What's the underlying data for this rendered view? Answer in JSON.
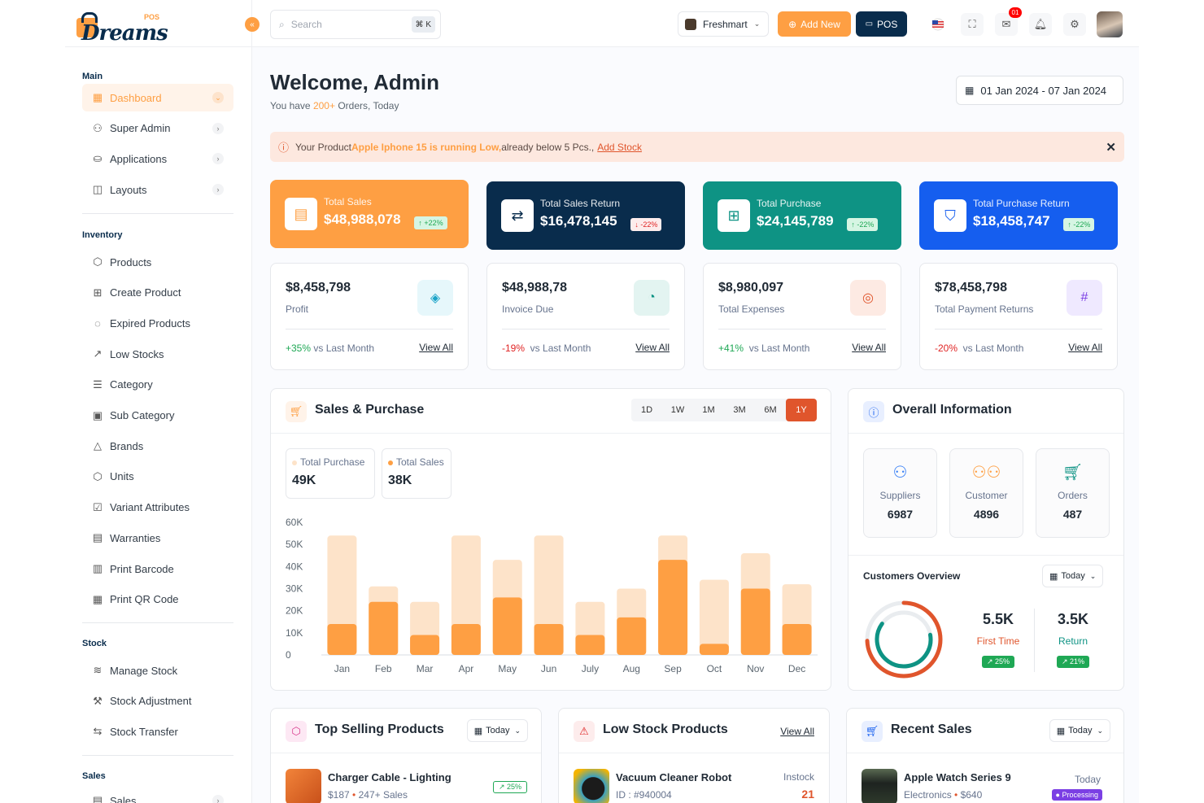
{
  "brand": {
    "name": "Dreams",
    "suffix": "POS"
  },
  "search": {
    "placeholder": "Search",
    "shortcut": "⌘ K"
  },
  "header": {
    "store": "Freshmart",
    "add_new": "Add New",
    "pos": "POS",
    "notification_count": "01",
    "icons": [
      "flag-us-icon",
      "fullscreen-icon",
      "mail-icon",
      "bell-icon",
      "settings-icon",
      "avatar"
    ]
  },
  "sidebar": {
    "main_heading": "Main",
    "main": [
      {
        "label": "Dashboard",
        "icon": "grid-icon",
        "active": true
      },
      {
        "label": "Super Admin",
        "icon": "user-shield-icon"
      },
      {
        "label": "Applications",
        "icon": "brand-icon"
      },
      {
        "label": "Layouts",
        "icon": "layout-icon"
      }
    ],
    "inventory_heading": "Inventory",
    "inventory": [
      {
        "label": "Products",
        "icon": "box-icon"
      },
      {
        "label": "Create Product",
        "icon": "table-plus-icon"
      },
      {
        "label": "Expired Products",
        "icon": "progress-alert-icon"
      },
      {
        "label": "Low Stocks",
        "icon": "trending-down-icon"
      },
      {
        "label": "Category",
        "icon": "list-details-icon"
      },
      {
        "label": "Sub Category",
        "icon": "carousel-icon"
      },
      {
        "label": "Brands",
        "icon": "triangle-icon"
      },
      {
        "label": "Units",
        "icon": "brand-unity-icon"
      },
      {
        "label": "Variant Attributes",
        "icon": "checklist-icon"
      },
      {
        "label": "Warranties",
        "icon": "certificate-icon"
      },
      {
        "label": "Print Barcode",
        "icon": "barcode-icon"
      },
      {
        "label": "Print QR Code",
        "icon": "qrcode-icon"
      }
    ],
    "stock_heading": "Stock",
    "stock": [
      {
        "label": "Manage Stock",
        "icon": "stack-icon"
      },
      {
        "label": "Stock Adjustment",
        "icon": "stairs-icon"
      },
      {
        "label": "Stock Transfer",
        "icon": "transfer-icon"
      }
    ],
    "sales_heading": "Sales",
    "sales": [
      {
        "label": "Sales",
        "icon": "file-invoice-icon"
      }
    ]
  },
  "welcome": {
    "title": "Welcome, Admin",
    "prefix": "You have ",
    "count": "200+",
    "suffix": " Orders, Today"
  },
  "date_range": "01 Jan 2024 - 07 Jan 2024",
  "alert": {
    "prefix": "Your Product ",
    "product": "Apple Iphone 15 is running Low,",
    "suffix": " already below 5 Pcs.,",
    "link": "Add Stock"
  },
  "kpis": [
    {
      "label": "Total Sales",
      "value": "$48,988,078",
      "change": "↑ +22%",
      "color": "#fe9f43",
      "icon": "file-text-icon"
    },
    {
      "label": "Total Sales Return",
      "value": "$16,478,145",
      "change": "↓ -22%",
      "color": "#092c4c",
      "icon": "repeat-icon"
    },
    {
      "label": "Total Purchase",
      "value": "$24,145,789",
      "change": "↑ -22%",
      "color": "#0e9384",
      "icon": "gift-icon"
    },
    {
      "label": "Total Purchase Return",
      "value": "$18,458,747",
      "change": "↑ -22%",
      "color": "#155eef",
      "icon": "shield-icon"
    }
  ],
  "stats": [
    {
      "value": "$8,458,798",
      "label": "Profit",
      "change": "+35%",
      "tail": " vs Last Month",
      "view": "View All",
      "icon": "layers-icon",
      "up": true
    },
    {
      "value": "$48,988,78",
      "label": "Invoice Due",
      "change": "-19%",
      "tail": "  vs Last Month",
      "view": "View All",
      "icon": "clock-icon",
      "up": false
    },
    {
      "value": "$8,980,097",
      "label": "Total Expenses",
      "change": "+41%",
      "tail": "  vs Last Month",
      "view": "View All",
      "icon": "lifebuoy-icon",
      "up": true
    },
    {
      "value": "$78,458,798",
      "label": "Total Payment Returns",
      "change": "-20%",
      "tail": "  vs Last Month",
      "view": "View All",
      "icon": "hash-icon",
      "up": false
    }
  ],
  "sales_purchase": {
    "title": "Sales & Purchase",
    "ranges": [
      "1D",
      "1W",
      "1M",
      "3M",
      "6M",
      "1Y"
    ],
    "active_range": "1Y",
    "legend": [
      {
        "label": "Total Purchase",
        "value": "49K"
      },
      {
        "label": "Total Sales",
        "value": "38K"
      }
    ]
  },
  "chart_data": {
    "type": "bar",
    "categories": [
      "Jan",
      "Feb",
      "Mar",
      "Apr",
      "May",
      "Jun",
      "July",
      "Aug",
      "Sep",
      "Oct",
      "Nov",
      "Dec"
    ],
    "series": [
      {
        "name": "Total Purchase",
        "values": [
          54,
          31,
          24,
          54,
          43,
          54,
          24,
          30,
          54,
          34,
          46,
          32
        ]
      },
      {
        "name": "Total Sales",
        "values": [
          14,
          24,
          9,
          14,
          26,
          14,
          9,
          17,
          43,
          5,
          30,
          14
        ]
      }
    ],
    "stacked": "overlay",
    "ylim": [
      0,
      60
    ],
    "yticks": [
      "60K",
      "50K",
      "40K",
      "30K",
      "20K",
      "10K",
      "0"
    ],
    "colors": {
      "purchase": "#fde3c9",
      "sales": "#fe9f43"
    },
    "grid": false
  },
  "overall": {
    "title": "Overall Information",
    "items": [
      {
        "label": "Suppliers",
        "value": "6987",
        "icon": "user-check-icon"
      },
      {
        "label": "Customer",
        "value": "4896",
        "icon": "users-icon"
      },
      {
        "label": "Orders",
        "value": "487",
        "icon": "cart-icon"
      }
    ],
    "customers_overview": "Customers Overview",
    "filter": "Today",
    "first_time": {
      "value": "5.5K",
      "label": "First Time",
      "badge": "↗ 25%"
    },
    "return": {
      "value": "3.5K",
      "label": "Return",
      "badge": "↗ 21%"
    }
  },
  "top_selling": {
    "title": "Top Selling Products",
    "filter": "Today",
    "item": {
      "name": "Charger Cable - Lighting",
      "price": "$187",
      "sales": "247+ Sales",
      "badge": "↗ 25%"
    }
  },
  "low_stock": {
    "title": "Low Stock Products",
    "view": "View All",
    "item": {
      "name": "Vacuum Cleaner Robot",
      "id": "ID : #940004",
      "status": "Instock",
      "qty": "21"
    }
  },
  "recent_sales": {
    "title": "Recent Sales",
    "filter": "Today",
    "item": {
      "name": "Apple Watch Series 9",
      "category": "Electronics",
      "price": "$640",
      "date": "Today",
      "status": "Processing"
    }
  }
}
